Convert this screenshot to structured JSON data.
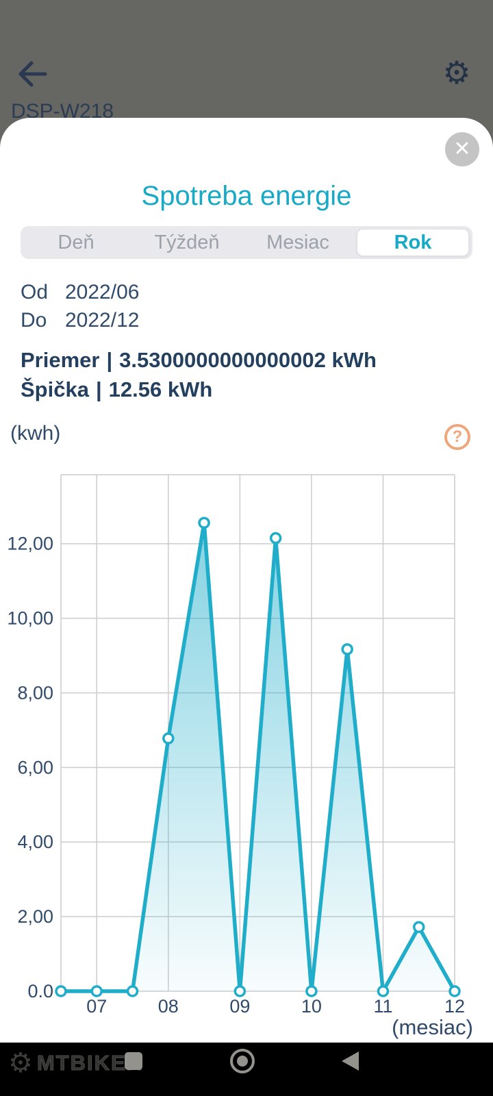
{
  "app_behind": {
    "device_name": "DSP-W218"
  },
  "icons": {
    "settings_glyph": "⚙",
    "close_glyph": "✕",
    "help_glyph": "?"
  },
  "modal": {
    "title": "Spotreba energie",
    "tabs": [
      {
        "label": "Deň",
        "active": false
      },
      {
        "label": "Týždeň",
        "active": false
      },
      {
        "label": "Mesiac",
        "active": false
      },
      {
        "label": "Rok",
        "active": true
      }
    ],
    "date_range": {
      "from_label": "Od",
      "from_value": "2022/06",
      "to_label": "Do",
      "to_value": "2022/12"
    },
    "stats": {
      "average_label": "Priemer",
      "separator": "|",
      "average_value": "3.5300000000000002 kWh",
      "peak_label": "Špička",
      "peak_value": "12.56 kWh"
    },
    "y_unit_label": "(kwh)",
    "x_unit_label": "(mesiac)"
  },
  "chart_data": {
    "type": "line",
    "title": "Spotreba energie",
    "x": [
      6.5,
      7,
      7.5,
      8,
      8.5,
      9,
      9.5,
      10,
      10.5,
      11,
      11.5,
      12
    ],
    "values": [
      0,
      0,
      0,
      6.78,
      12.56,
      0,
      12.15,
      0,
      9.17,
      0,
      1.72,
      0
    ],
    "x_ticks": [
      7,
      8,
      9,
      10,
      11,
      12
    ],
    "x_tick_labels": [
      "07",
      "08",
      "09",
      "10",
      "11",
      "12"
    ],
    "y_ticks": [
      0,
      2,
      4,
      6,
      8,
      10,
      12
    ],
    "y_tick_labels": [
      "0.0",
      "2,00",
      "4,00",
      "6,00",
      "8,00",
      "10,00",
      "12,00"
    ],
    "xlim": [
      6.5,
      12
    ],
    "ylim": [
      0,
      13.85
    ],
    "xlabel": "(mesiac)",
    "ylabel": "(kwh)",
    "grid": true,
    "legend": false,
    "line_color": "#1fadca",
    "marker": "open-circle",
    "area_fill": true
  },
  "nav_bar": {
    "watermark": "MTBIKER",
    "watermark_gear_glyph": "⚙"
  },
  "colors": {
    "accent_cyan": "#17a9c6",
    "text_navy": "#2f4a6b",
    "scrim": "#666663",
    "help_orange": "#f0a67b",
    "gridline": "#cccccc",
    "close_circle": "#c4c4c4",
    "nav_icon_gray": "#94928d"
  }
}
